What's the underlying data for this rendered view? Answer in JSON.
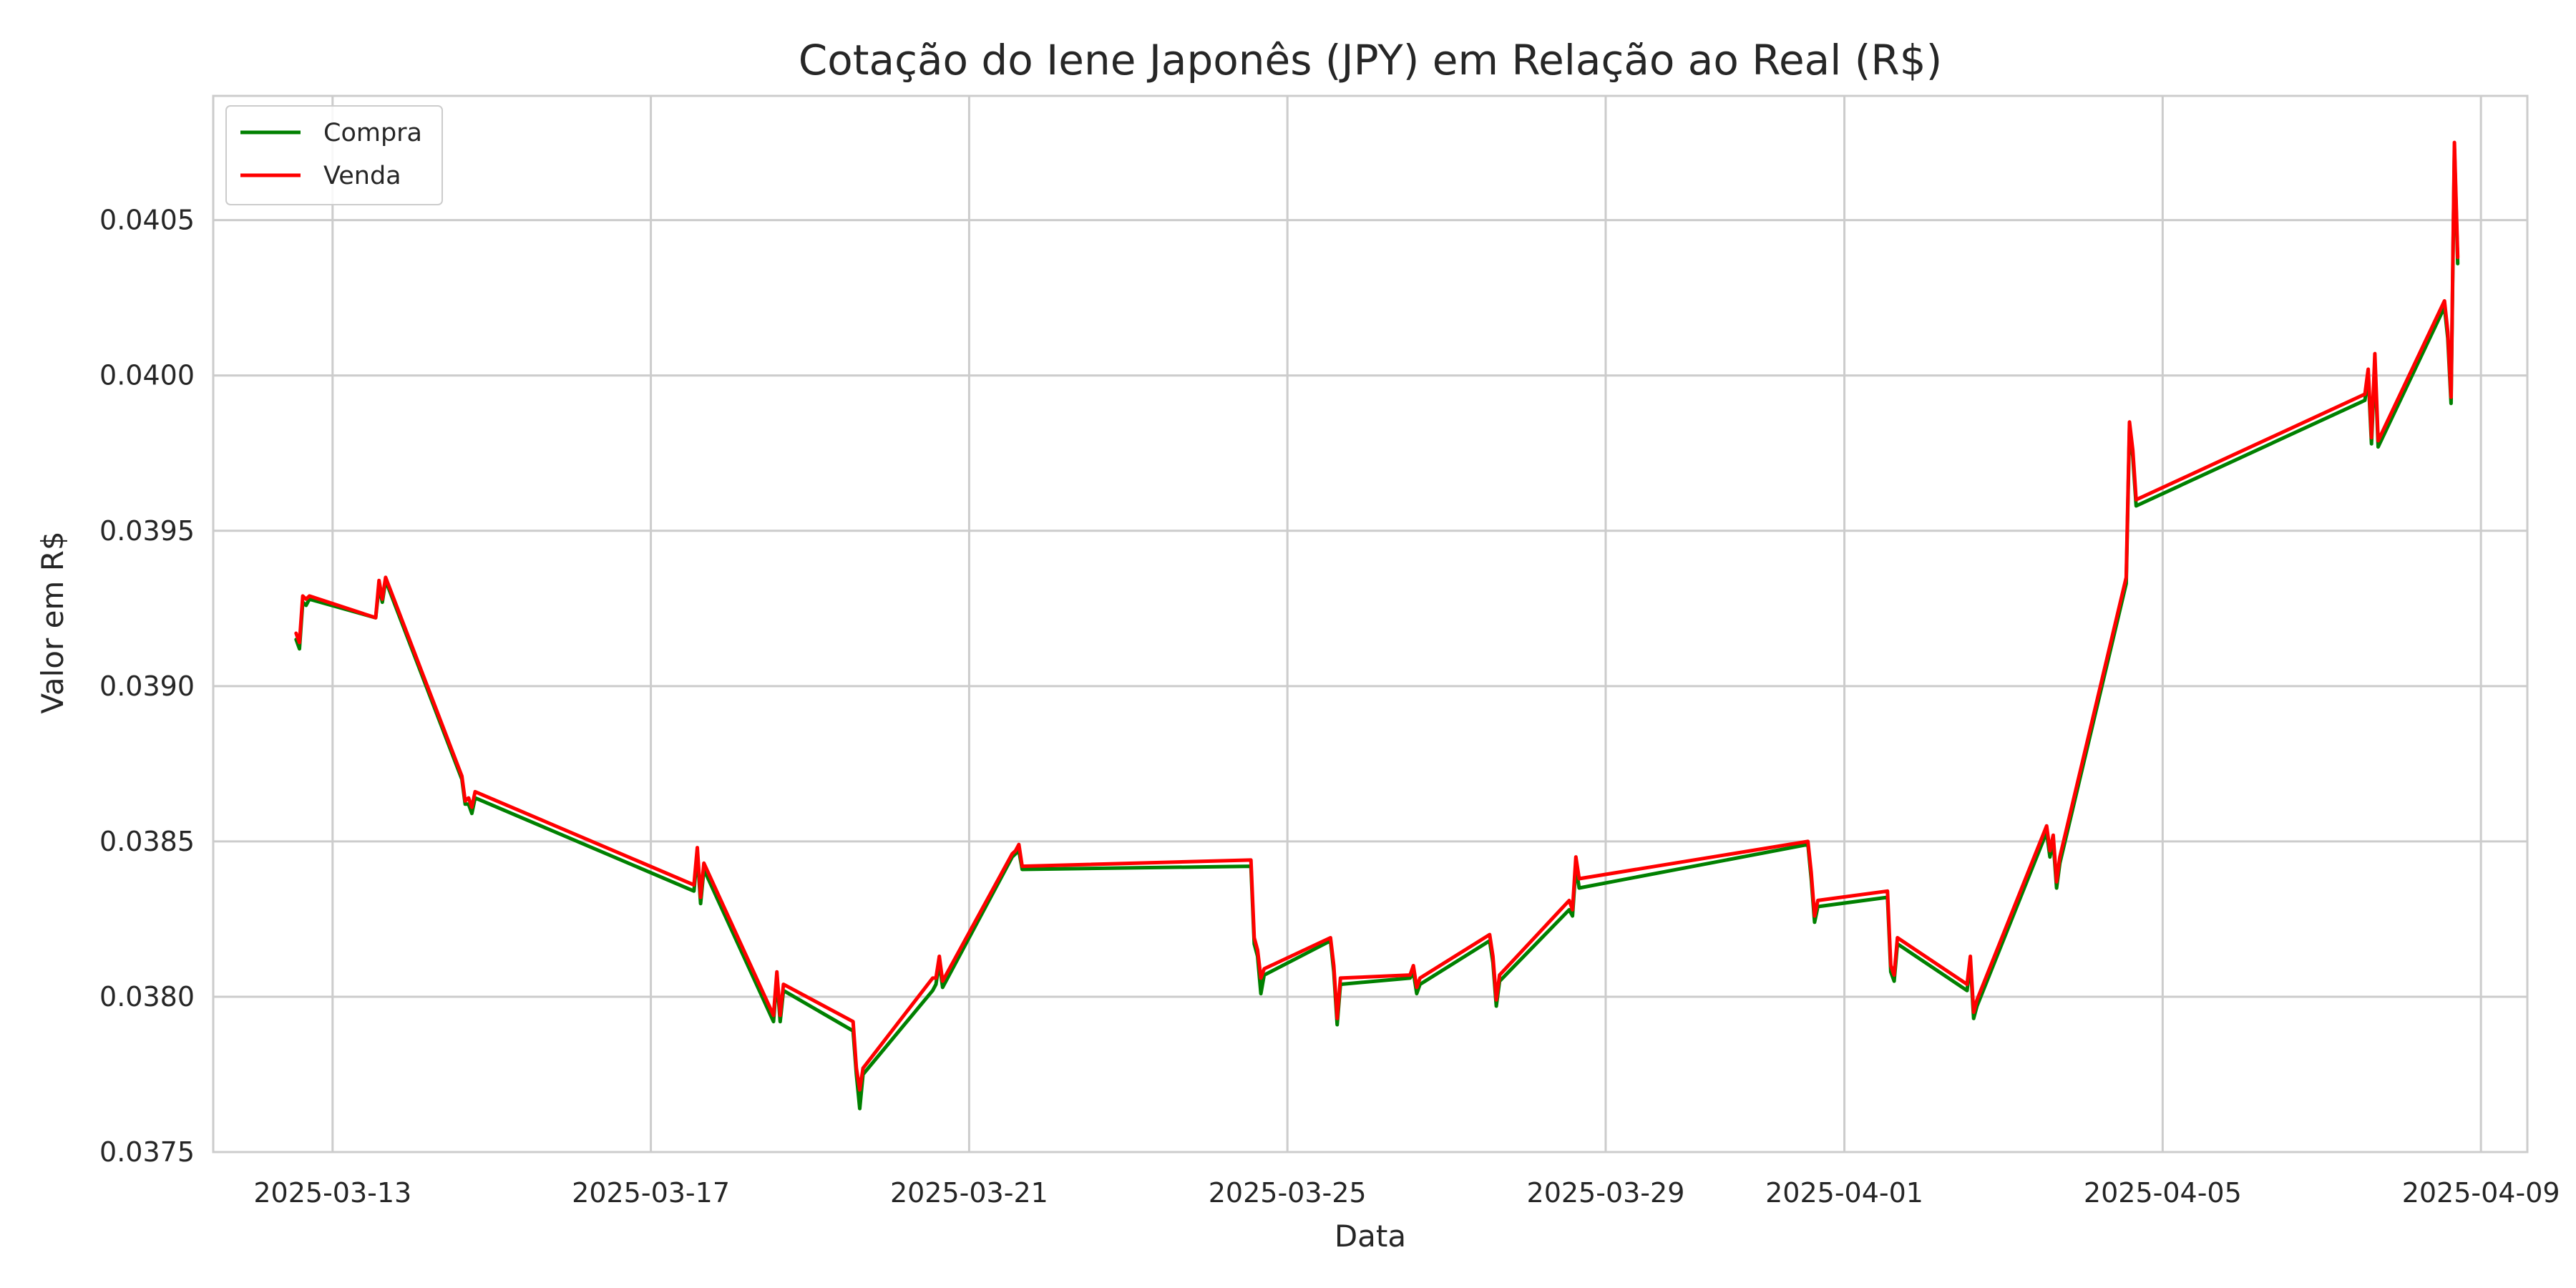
{
  "chart_data": {
    "type": "line",
    "title": "Cotação do Iene Japonês (JPY) em Relação ao Real (R$)",
    "xlabel": "Data",
    "ylabel": "Valor em R$",
    "xlim": [
      "2025-03-11T12:00",
      "2025-04-09T14:00"
    ],
    "ylim": [
      0.0375,
      0.0409
    ],
    "x_ticks": [
      "2025-03-13",
      "2025-03-17",
      "2025-03-21",
      "2025-03-25",
      "2025-03-29",
      "2025-04-01",
      "2025-04-05",
      "2025-04-09"
    ],
    "y_ticks": [
      "0.0375",
      "0.0380",
      "0.0385",
      "0.0390",
      "0.0395",
      "0.0400",
      "0.0405"
    ],
    "grid": true,
    "legend_position": "top-left",
    "colors": {
      "Compra": "#008000",
      "Venda": "#ff0000",
      "grid": "#cccccc",
      "frame": "#cccccc"
    },
    "series": [
      {
        "name": "Compra",
        "points": [
          [
            "2025-03-12T13:00",
            0.03915
          ],
          [
            "2025-03-12T14:00",
            0.03912
          ],
          [
            "2025-03-12T15:00",
            0.03927
          ],
          [
            "2025-03-12T16:00",
            0.03926
          ],
          [
            "2025-03-12T17:00",
            0.03928
          ],
          [
            "2025-03-13T13:00",
            0.03922
          ],
          [
            "2025-03-13T14:00",
            0.03932
          ],
          [
            "2025-03-13T15:00",
            0.03927
          ],
          [
            "2025-03-13T16:00",
            0.03934
          ],
          [
            "2025-03-14T15:00",
            0.0387
          ],
          [
            "2025-03-14T16:00",
            0.03862
          ],
          [
            "2025-03-14T17:00",
            0.03862
          ],
          [
            "2025-03-14T18:00",
            0.03859
          ],
          [
            "2025-03-14T19:00",
            0.03864
          ],
          [
            "2025-03-17T13:00",
            0.03834
          ],
          [
            "2025-03-17T14:00",
            0.03846
          ],
          [
            "2025-03-17T15:00",
            0.0383
          ],
          [
            "2025-03-17T16:00",
            0.03841
          ],
          [
            "2025-03-18T13:00",
            0.03792
          ],
          [
            "2025-03-18T14:00",
            0.03806
          ],
          [
            "2025-03-18T15:00",
            0.03792
          ],
          [
            "2025-03-18T16:00",
            0.03802
          ],
          [
            "2025-03-19T13:00",
            0.03789
          ],
          [
            "2025-03-19T14:00",
            0.03775
          ],
          [
            "2025-03-19T15:00",
            0.03764
          ],
          [
            "2025-03-19T16:00",
            0.03775
          ],
          [
            "2025-03-20T13:00",
            0.03802
          ],
          [
            "2025-03-20T14:00",
            0.03804
          ],
          [
            "2025-03-20T15:00",
            0.03811
          ],
          [
            "2025-03-20T16:00",
            0.03803
          ],
          [
            "2025-03-21T13:00",
            0.03845
          ],
          [
            "2025-03-21T14:00",
            0.03846
          ],
          [
            "2025-03-21T15:00",
            0.03847
          ],
          [
            "2025-03-21T16:00",
            0.03841
          ],
          [
            "2025-03-24T13:00",
            0.03842
          ],
          [
            "2025-03-24T14:00",
            0.03817
          ],
          [
            "2025-03-24T15:00",
            0.03813
          ],
          [
            "2025-03-24T16:00",
            0.03801
          ],
          [
            "2025-03-24T17:00",
            0.03807
          ],
          [
            "2025-03-25T13:00",
            0.03818
          ],
          [
            "2025-03-25T14:00",
            0.03808
          ],
          [
            "2025-03-25T15:00",
            0.03791
          ],
          [
            "2025-03-25T16:00",
            0.03804
          ],
          [
            "2025-03-26T13:00",
            0.03806
          ],
          [
            "2025-03-26T14:00",
            0.03808
          ],
          [
            "2025-03-26T15:00",
            0.03801
          ],
          [
            "2025-03-26T16:00",
            0.03804
          ],
          [
            "2025-03-27T13:00",
            0.03818
          ],
          [
            "2025-03-27T14:00",
            0.03811
          ],
          [
            "2025-03-27T15:00",
            0.03797
          ],
          [
            "2025-03-27T16:00",
            0.03805
          ],
          [
            "2025-03-28T13:00",
            0.03828
          ],
          [
            "2025-03-28T14:00",
            0.03826
          ],
          [
            "2025-03-28T15:00",
            0.03842
          ],
          [
            "2025-03-28T16:00",
            0.03835
          ],
          [
            "2025-03-31T13:00",
            0.03849
          ],
          [
            "2025-03-31T14:00",
            0.03838
          ],
          [
            "2025-03-31T15:00",
            0.03824
          ],
          [
            "2025-03-31T16:00",
            0.03829
          ],
          [
            "2025-04-01T13:00",
            0.03832
          ],
          [
            "2025-04-01T14:00",
            0.03808
          ],
          [
            "2025-04-01T15:00",
            0.03805
          ],
          [
            "2025-04-01T16:00",
            0.03817
          ],
          [
            "2025-04-02T13:00",
            0.03802
          ],
          [
            "2025-04-02T14:00",
            0.03811
          ],
          [
            "2025-04-02T15:00",
            0.03793
          ],
          [
            "2025-04-02T16:00",
            0.03797
          ],
          [
            "2025-04-03T13:00",
            0.03853
          ],
          [
            "2025-04-03T14:00",
            0.03845
          ],
          [
            "2025-04-03T15:00",
            0.0385
          ],
          [
            "2025-04-03T16:00",
            0.03835
          ],
          [
            "2025-04-03T17:00",
            0.03843
          ],
          [
            "2025-04-04T13:00",
            0.03933
          ],
          [
            "2025-04-04T14:00",
            0.03983
          ],
          [
            "2025-04-04T15:00",
            0.03974
          ],
          [
            "2025-04-04T16:00",
            0.03958
          ],
          [
            "2025-04-07T13:00",
            0.03992
          ],
          [
            "2025-04-07T14:00",
            0.04
          ],
          [
            "2025-04-07T15:00",
            0.03978
          ],
          [
            "2025-04-07T16:00",
            0.04004
          ],
          [
            "2025-04-07T17:00",
            0.03977
          ],
          [
            "2025-04-08T13:00",
            0.04022
          ],
          [
            "2025-04-08T14:00",
            0.04012
          ],
          [
            "2025-04-08T15:00",
            0.03991
          ],
          [
            "2025-04-08T16:00",
            0.04073
          ],
          [
            "2025-04-08T17:00",
            0.04036
          ]
        ]
      },
      {
        "name": "Venda",
        "points": [
          [
            "2025-03-12T13:00",
            0.03917
          ],
          [
            "2025-03-12T14:00",
            0.03914
          ],
          [
            "2025-03-12T15:00",
            0.03929
          ],
          [
            "2025-03-12T16:00",
            0.03928
          ],
          [
            "2025-03-12T17:00",
            0.03929
          ],
          [
            "2025-03-13T13:00",
            0.03922
          ],
          [
            "2025-03-13T14:00",
            0.03934
          ],
          [
            "2025-03-13T15:00",
            0.03928
          ],
          [
            "2025-03-13T16:00",
            0.03935
          ],
          [
            "2025-03-14T15:00",
            0.03871
          ],
          [
            "2025-03-14T16:00",
            0.03863
          ],
          [
            "2025-03-14T17:00",
            0.03864
          ],
          [
            "2025-03-14T18:00",
            0.03861
          ],
          [
            "2025-03-14T19:00",
            0.03866
          ],
          [
            "2025-03-17T13:00",
            0.03836
          ],
          [
            "2025-03-17T14:00",
            0.03848
          ],
          [
            "2025-03-17T15:00",
            0.03832
          ],
          [
            "2025-03-17T16:00",
            0.03843
          ],
          [
            "2025-03-18T13:00",
            0.03794
          ],
          [
            "2025-03-18T14:00",
            0.03808
          ],
          [
            "2025-03-18T15:00",
            0.03794
          ],
          [
            "2025-03-18T16:00",
            0.03804
          ],
          [
            "2025-03-19T13:00",
            0.03792
          ],
          [
            "2025-03-19T14:00",
            0.03777
          ],
          [
            "2025-03-19T15:00",
            0.0377
          ],
          [
            "2025-03-19T16:00",
            0.03777
          ],
          [
            "2025-03-20T13:00",
            0.03806
          ],
          [
            "2025-03-20T14:00",
            0.03806
          ],
          [
            "2025-03-20T15:00",
            0.03813
          ],
          [
            "2025-03-20T16:00",
            0.03805
          ],
          [
            "2025-03-21T13:00",
            0.03846
          ],
          [
            "2025-03-21T14:00",
            0.03847
          ],
          [
            "2025-03-21T15:00",
            0.03849
          ],
          [
            "2025-03-21T16:00",
            0.03842
          ],
          [
            "2025-03-24T13:00",
            0.03844
          ],
          [
            "2025-03-24T14:00",
            0.03819
          ],
          [
            "2025-03-24T15:00",
            0.03815
          ],
          [
            "2025-03-24T16:00",
            0.03806
          ],
          [
            "2025-03-24T17:00",
            0.03809
          ],
          [
            "2025-03-25T13:00",
            0.03819
          ],
          [
            "2025-03-25T14:00",
            0.0381
          ],
          [
            "2025-03-25T15:00",
            0.03793
          ],
          [
            "2025-03-25T16:00",
            0.03806
          ],
          [
            "2025-03-26T13:00",
            0.03807
          ],
          [
            "2025-03-26T14:00",
            0.0381
          ],
          [
            "2025-03-26T15:00",
            0.03803
          ],
          [
            "2025-03-26T16:00",
            0.03806
          ],
          [
            "2025-03-27T13:00",
            0.0382
          ],
          [
            "2025-03-27T14:00",
            0.03813
          ],
          [
            "2025-03-27T15:00",
            0.03799
          ],
          [
            "2025-03-27T16:00",
            0.03807
          ],
          [
            "2025-03-28T13:00",
            0.03831
          ],
          [
            "2025-03-28T14:00",
            0.03828
          ],
          [
            "2025-03-28T15:00",
            0.03845
          ],
          [
            "2025-03-28T16:00",
            0.03838
          ],
          [
            "2025-03-31T13:00",
            0.0385
          ],
          [
            "2025-03-31T14:00",
            0.0384
          ],
          [
            "2025-03-31T15:00",
            0.03826
          ],
          [
            "2025-03-31T16:00",
            0.03831
          ],
          [
            "2025-04-01T13:00",
            0.03834
          ],
          [
            "2025-04-01T14:00",
            0.0381
          ],
          [
            "2025-04-01T15:00",
            0.03807
          ],
          [
            "2025-04-01T16:00",
            0.03819
          ],
          [
            "2025-04-02T13:00",
            0.03804
          ],
          [
            "2025-04-02T14:00",
            0.03813
          ],
          [
            "2025-04-02T15:00",
            0.03795
          ],
          [
            "2025-04-02T16:00",
            0.03799
          ],
          [
            "2025-04-03T13:00",
            0.03855
          ],
          [
            "2025-04-03T14:00",
            0.03847
          ],
          [
            "2025-04-03T15:00",
            0.03852
          ],
          [
            "2025-04-03T16:00",
            0.03837
          ],
          [
            "2025-04-03T17:00",
            0.03845
          ],
          [
            "2025-04-04T13:00",
            0.03935
          ],
          [
            "2025-04-04T14:00",
            0.03985
          ],
          [
            "2025-04-04T15:00",
            0.03976
          ],
          [
            "2025-04-04T16:00",
            0.0396
          ],
          [
            "2025-04-07T13:00",
            0.03994
          ],
          [
            "2025-04-07T14:00",
            0.04002
          ],
          [
            "2025-04-07T15:00",
            0.0398
          ],
          [
            "2025-04-07T16:00",
            0.04007
          ],
          [
            "2025-04-07T17:00",
            0.03979
          ],
          [
            "2025-04-08T13:00",
            0.04024
          ],
          [
            "2025-04-08T14:00",
            0.04014
          ],
          [
            "2025-04-08T15:00",
            0.03993
          ],
          [
            "2025-04-08T16:00",
            0.04075
          ],
          [
            "2025-04-08T17:00",
            0.04038
          ]
        ]
      }
    ]
  }
}
